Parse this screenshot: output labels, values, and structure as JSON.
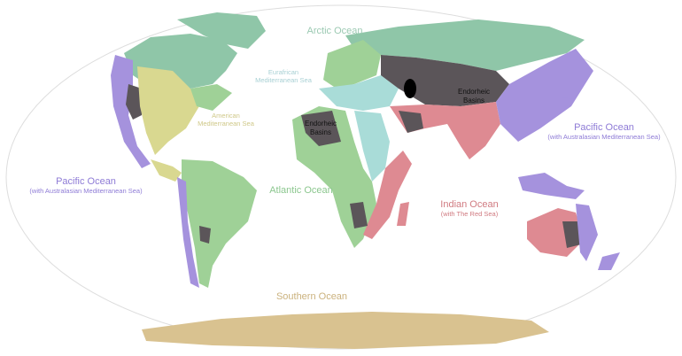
{
  "map": {
    "projection": "robinson-like world map",
    "colors": {
      "arctic": "#8fc6a8",
      "atlantic": "#9fd197",
      "pacific": "#a592dd",
      "indian": "#de8a92",
      "endorheic": "#5b5559",
      "eurafrican_mediterranean": "#a9dcd8",
      "american_mediterranean": "#d9d890",
      "southern": "#d9c290",
      "lakes": "#000000"
    },
    "labels": {
      "arctic": "Arctic Ocean",
      "eurafrican_line1": "Eurafrican",
      "eurafrican_line2": "Mediterranean Sea",
      "american_line1": "American",
      "american_line2": "Mediterranean Sea",
      "endorheic_asia_line1": "Endorheic",
      "endorheic_asia_line2": "Basins",
      "endorheic_africa_line1": "Endorheic",
      "endorheic_africa_line2": "Basins",
      "pacific_east_title": "Pacific Ocean",
      "pacific_east_sub": "(with Australasian Mediterranean Sea)",
      "pacific_west_title": "Pacific Ocean",
      "pacific_west_sub": "(with Australasian Mediterranean Sea)",
      "atlantic": "Atlantic Ocean",
      "indian_title": "Indian Ocean",
      "indian_sub": "(with The Red Sea)",
      "southern": "Southern Ocean"
    }
  }
}
